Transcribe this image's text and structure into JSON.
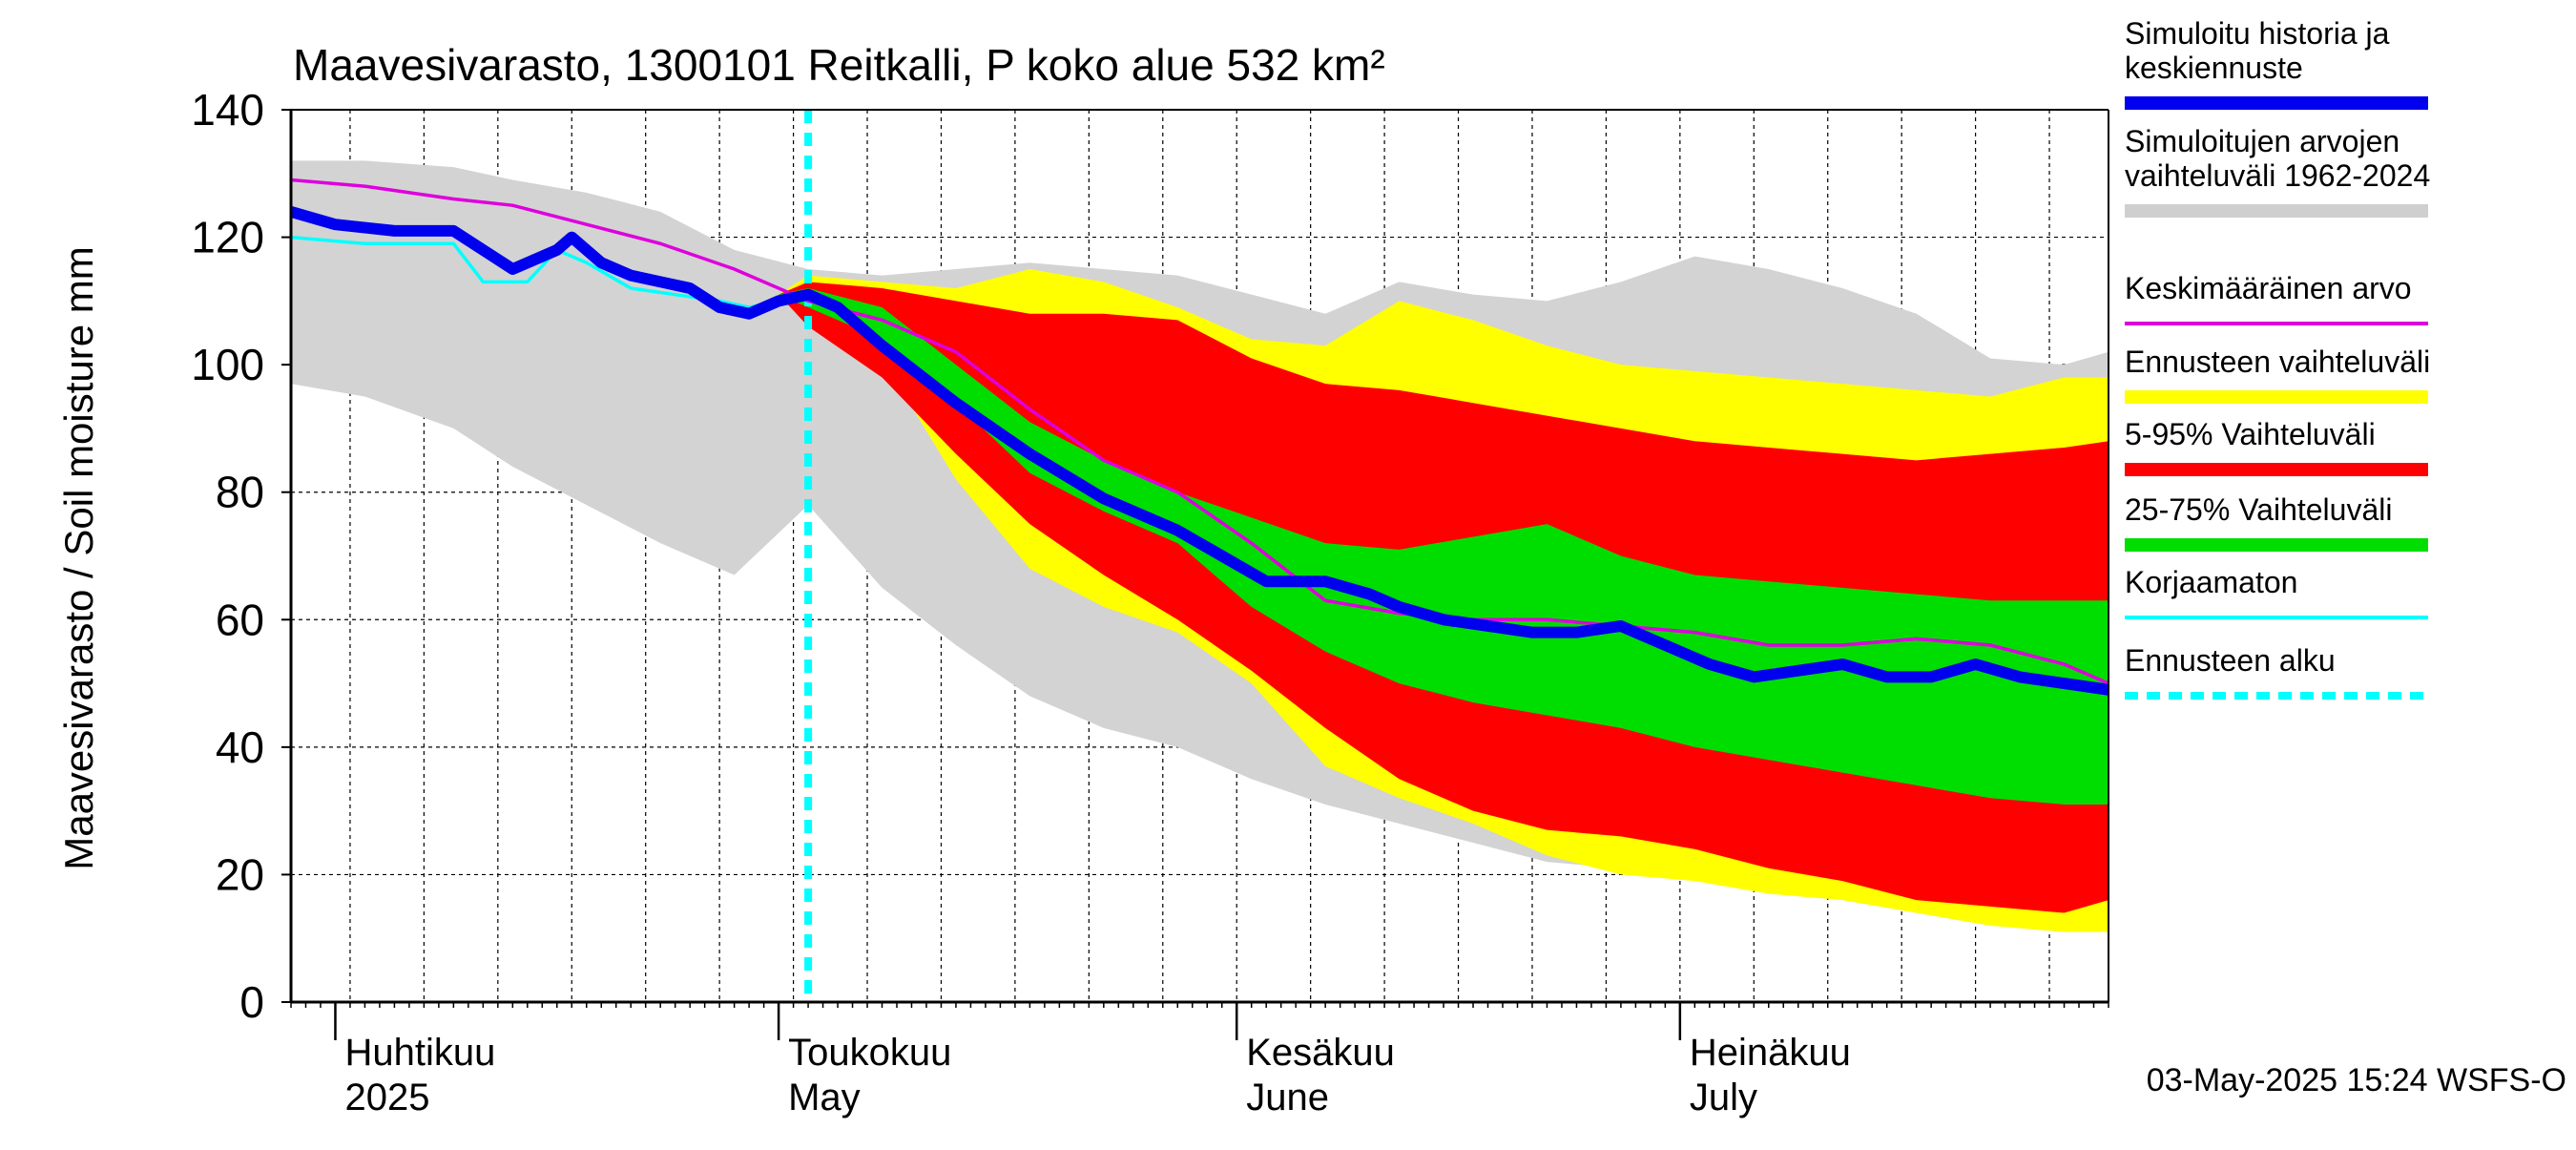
{
  "chart_data": {
    "type": "area",
    "title": "Maavesivarasto, 1300101 Reitkalli, P koko alue 532 km²",
    "ylabel": "Maavesivarasto / Soil moisture   mm",
    "ylim": [
      0,
      140
    ],
    "yticks": [
      0,
      20,
      40,
      60,
      80,
      100,
      120,
      140
    ],
    "x_unit": "day of year 2025",
    "xlim": [
      88,
      211
    ],
    "months": [
      {
        "fi": "Huhtikuu",
        "en": "2025",
        "start_day": 91
      },
      {
        "fi": "Toukokuu",
        "en": "May",
        "start_day": 121
      },
      {
        "fi": "Kesäkuu",
        "en": "June",
        "start_day": 152
      },
      {
        "fi": "Heinäkuu",
        "en": "July",
        "start_day": 182
      }
    ],
    "forecast_start_day": 123,
    "series": [
      {
        "name": "Simuloitujen arvojen vaihteluväli 1962-2024",
        "kind": "band",
        "color": "#d3d3d3",
        "x": [
          88,
          93,
          99,
          103,
          108,
          113,
          118,
          123,
          128,
          133,
          138,
          143,
          148,
          153,
          158,
          163,
          168,
          173,
          178,
          183,
          188,
          193,
          198,
          203,
          208,
          211
        ],
        "upper": [
          132,
          132,
          131,
          129,
          127,
          124,
          118,
          115,
          114,
          115,
          116,
          115,
          114,
          111,
          108,
          113,
          111,
          110,
          113,
          117,
          115,
          112,
          108,
          101,
          100,
          102
        ],
        "lower": [
          97,
          95,
          90,
          84,
          78,
          72,
          67,
          78,
          65,
          56,
          48,
          43,
          40,
          35,
          31,
          28,
          25,
          22,
          21,
          20,
          18,
          16,
          14,
          12,
          11,
          11
        ]
      },
      {
        "name": "Ennusteen vaihteluväli",
        "kind": "band",
        "color": "#ffff00",
        "x": [
          121,
          123,
          128,
          133,
          138,
          143,
          148,
          153,
          158,
          163,
          168,
          173,
          178,
          183,
          188,
          193,
          198,
          203,
          208,
          211
        ],
        "upper": [
          111,
          114,
          113,
          112,
          115,
          113,
          109,
          104,
          103,
          110,
          107,
          103,
          100,
          99,
          98,
          97,
          96,
          95,
          98,
          98
        ],
        "lower": [
          111,
          108,
          101,
          82,
          68,
          62,
          58,
          50,
          37,
          32,
          28,
          23,
          20,
          19,
          17,
          16,
          14,
          12,
          11,
          11
        ]
      },
      {
        "name": "5-95% Vaihteluväli",
        "kind": "band",
        "color": "#ff0000",
        "x": [
          121,
          123,
          128,
          133,
          138,
          143,
          148,
          153,
          158,
          163,
          168,
          173,
          178,
          183,
          188,
          193,
          198,
          203,
          208,
          211
        ],
        "upper": [
          111,
          113,
          112,
          110,
          108,
          108,
          107,
          101,
          97,
          96,
          94,
          92,
          90,
          88,
          87,
          86,
          85,
          86,
          87,
          88
        ],
        "lower": [
          111,
          106,
          98,
          86,
          75,
          67,
          60,
          52,
          43,
          35,
          30,
          27,
          26,
          24,
          21,
          19,
          16,
          15,
          14,
          16
        ]
      },
      {
        "name": "25-75% Vaihteluväli",
        "kind": "band",
        "color": "#00dd00",
        "x": [
          121,
          123,
          128,
          133,
          138,
          143,
          148,
          153,
          158,
          163,
          168,
          173,
          178,
          183,
          188,
          193,
          198,
          203,
          208,
          211
        ],
        "upper": [
          111,
          112,
          109,
          100,
          91,
          85,
          80,
          76,
          72,
          71,
          73,
          75,
          70,
          67,
          66,
          65,
          64,
          63,
          63,
          63
        ],
        "lower": [
          111,
          109,
          104,
          94,
          83,
          77,
          72,
          62,
          55,
          50,
          47,
          45,
          43,
          40,
          38,
          36,
          34,
          32,
          31,
          31
        ]
      },
      {
        "name": "Keskimääräinen arvo",
        "kind": "line",
        "color": "#dd00dd",
        "x": [
          88,
          93,
          99,
          103,
          108,
          113,
          118,
          123,
          128,
          133,
          138,
          143,
          148,
          153,
          158,
          163,
          168,
          173,
          178,
          183,
          188,
          193,
          198,
          203,
          208,
          211
        ],
        "y": [
          129,
          128,
          126,
          125,
          122,
          119,
          115,
          110,
          107,
          102,
          93,
          85,
          80,
          72,
          63,
          61,
          60,
          60,
          59,
          58,
          56,
          56,
          57,
          56,
          53,
          50
        ]
      },
      {
        "name": "Korjaamaton",
        "kind": "line",
        "color": "#00ffff",
        "x": [
          88,
          93,
          99,
          101,
          104,
          106,
          108,
          111,
          114,
          117,
          119,
          121,
          123
        ],
        "y": [
          120,
          119,
          119,
          113,
          113,
          118,
          116,
          112,
          111,
          110,
          109,
          110,
          111
        ]
      },
      {
        "name": "Simuloitu historia ja keskiennuste",
        "kind": "line",
        "color": "#0000ee",
        "x": [
          88,
          91,
          95,
          99,
          103,
          106,
          107,
          109,
          111,
          113,
          115,
          117,
          119,
          121,
          123,
          125,
          128,
          133,
          138,
          143,
          148,
          151,
          154,
          158,
          161,
          163,
          166,
          169,
          172,
          175,
          178,
          181,
          184,
          187,
          190,
          193,
          196,
          199,
          202,
          205,
          208,
          211
        ],
        "y": [
          124,
          122,
          121,
          121,
          115,
          118,
          120,
          116,
          114,
          113,
          112,
          109,
          108,
          110,
          111,
          109,
          103,
          94,
          86,
          79,
          74,
          70,
          66,
          66,
          64,
          62,
          60,
          59,
          58,
          58,
          59,
          56,
          53,
          51,
          52,
          53,
          51,
          51,
          53,
          51,
          50,
          49
        ]
      }
    ],
    "legend": [
      {
        "label": "Simuloitu historia ja keskiennuste",
        "color": "#0000ee",
        "style": "thick"
      },
      {
        "label": "Simuloitujen arvojen vaihteluväli 1962-2024",
        "color": "#cfcfcf",
        "style": "thick"
      },
      {
        "label": "Keskimääräinen arvo",
        "color": "#dd00dd",
        "style": "thin"
      },
      {
        "label": "Ennusteen vaihteluväli",
        "color": "#ffff00",
        "style": "thick"
      },
      {
        "label": "5-95% Vaihteluväli",
        "color": "#ff0000",
        "style": "thick"
      },
      {
        "label": "25-75% Vaihteluväli",
        "color": "#00dd00",
        "style": "thick"
      },
      {
        "label": "Korjaamaton",
        "color": "#00ffff",
        "style": "thin"
      },
      {
        "label": "Ennusteen alku",
        "color": "#00ffff",
        "style": "dashed"
      }
    ],
    "timestamp": "03-May-2025 15:24 WSFS-O"
  }
}
